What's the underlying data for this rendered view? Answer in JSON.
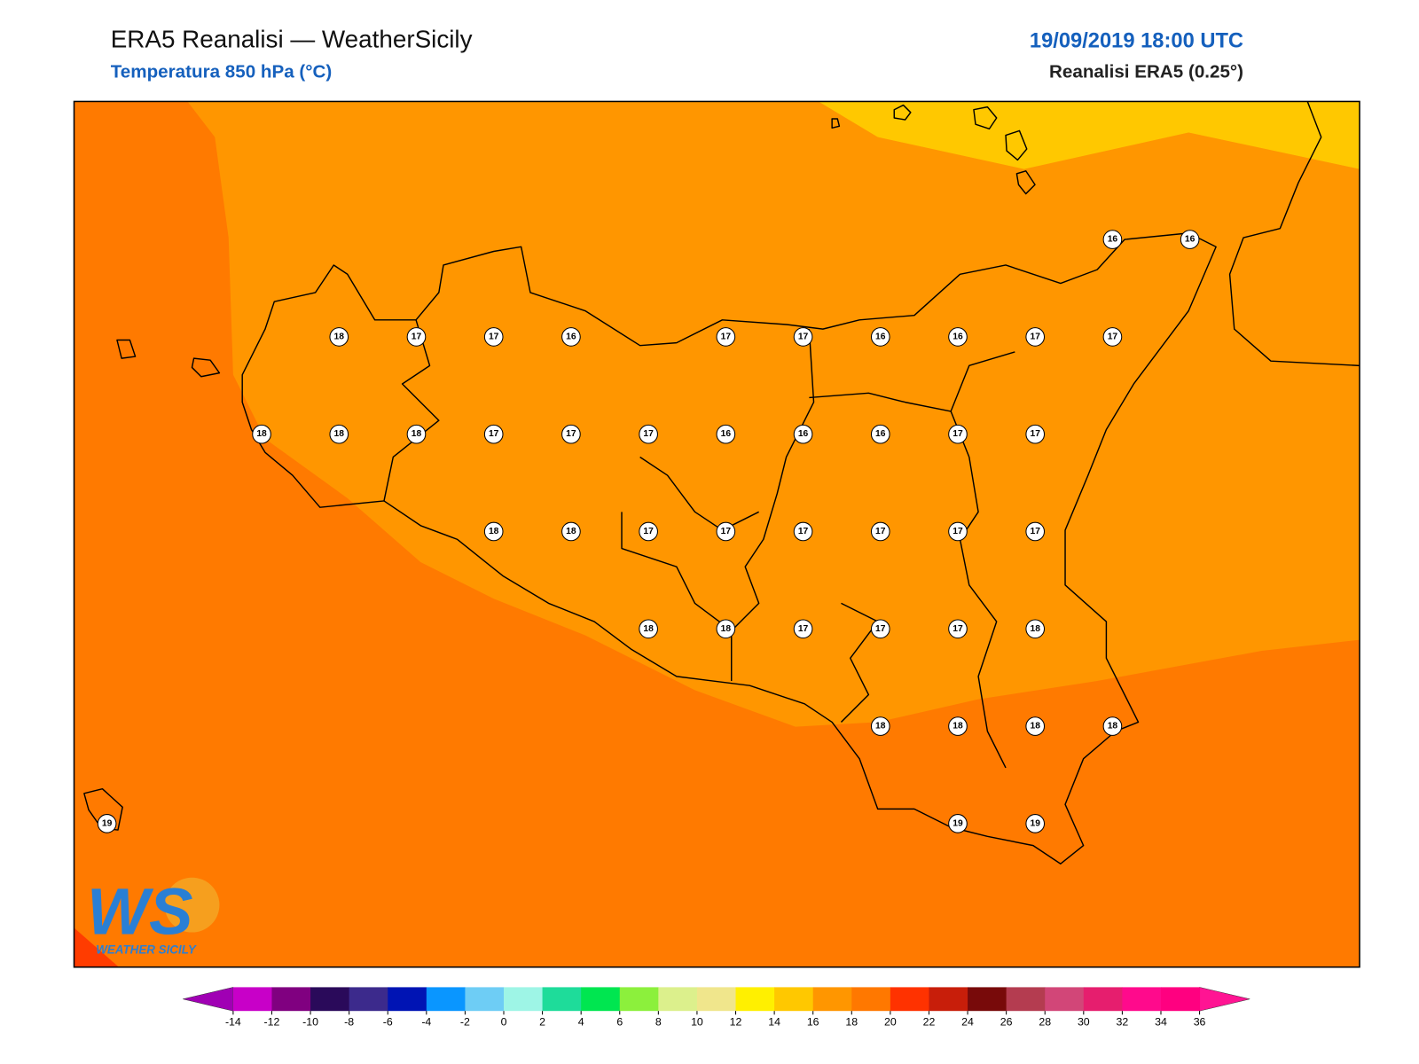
{
  "header": {
    "title": "ERA5 Reanalisi — WeatherSicily",
    "subtitle": "Temperatura 850 hPa (°C)",
    "datetime": "19/09/2019 18:00 UTC",
    "source": "Reanalisi ERA5 (0.25°)"
  },
  "logo": {
    "mark": "WS",
    "name": "WEATHER SICILY"
  },
  "map": {
    "grid": [
      [
        null,
        null,
        null,
        null,
        null,
        null,
        null,
        null,
        null,
        null,
        null,
        null,
        null,
        16,
        16
      ],
      [
        null,
        null,
        null,
        18,
        17,
        17,
        16,
        null,
        17,
        17,
        16,
        16,
        17,
        17,
        null
      ],
      [
        null,
        null,
        18,
        18,
        18,
        17,
        17,
        17,
        16,
        16,
        16,
        17,
        17,
        null,
        null
      ],
      [
        null,
        null,
        null,
        null,
        null,
        18,
        18,
        17,
        17,
        17,
        17,
        17,
        17,
        null,
        null
      ],
      [
        null,
        null,
        null,
        null,
        null,
        null,
        null,
        18,
        18,
        17,
        17,
        17,
        18,
        null,
        null
      ],
      [
        null,
        null,
        null,
        null,
        null,
        null,
        null,
        null,
        null,
        null,
        18,
        18,
        18,
        18,
        null
      ],
      [
        19,
        null,
        null,
        null,
        null,
        null,
        null,
        null,
        null,
        null,
        null,
        19,
        19,
        null,
        null
      ]
    ]
  },
  "colorbar": {
    "ticks": [
      -14,
      -12,
      -10,
      -8,
      -6,
      -4,
      -2,
      0,
      2,
      4,
      6,
      8,
      10,
      12,
      14,
      16,
      18,
      20,
      22,
      24,
      26,
      28,
      30,
      32,
      34,
      36
    ],
    "under": "#a000b4",
    "over": "#ff1493",
    "colors": [
      "#c800c8",
      "#800080",
      "#2a0a5a",
      "#3c2a8c",
      "#0014b4",
      "#0a96ff",
      "#6ecdf5",
      "#9ef5e6",
      "#1edc9a",
      "#00e650",
      "#8cf03c",
      "#dcf08c",
      "#f0e68c",
      "#fff000",
      "#ffc800",
      "#ff9600",
      "#ff7800",
      "#ff3200",
      "#c81e0a",
      "#780a0a",
      "#b43c50",
      "#d24678",
      "#e61e6e",
      "#ff0a8c",
      "#ff0080"
    ]
  }
}
